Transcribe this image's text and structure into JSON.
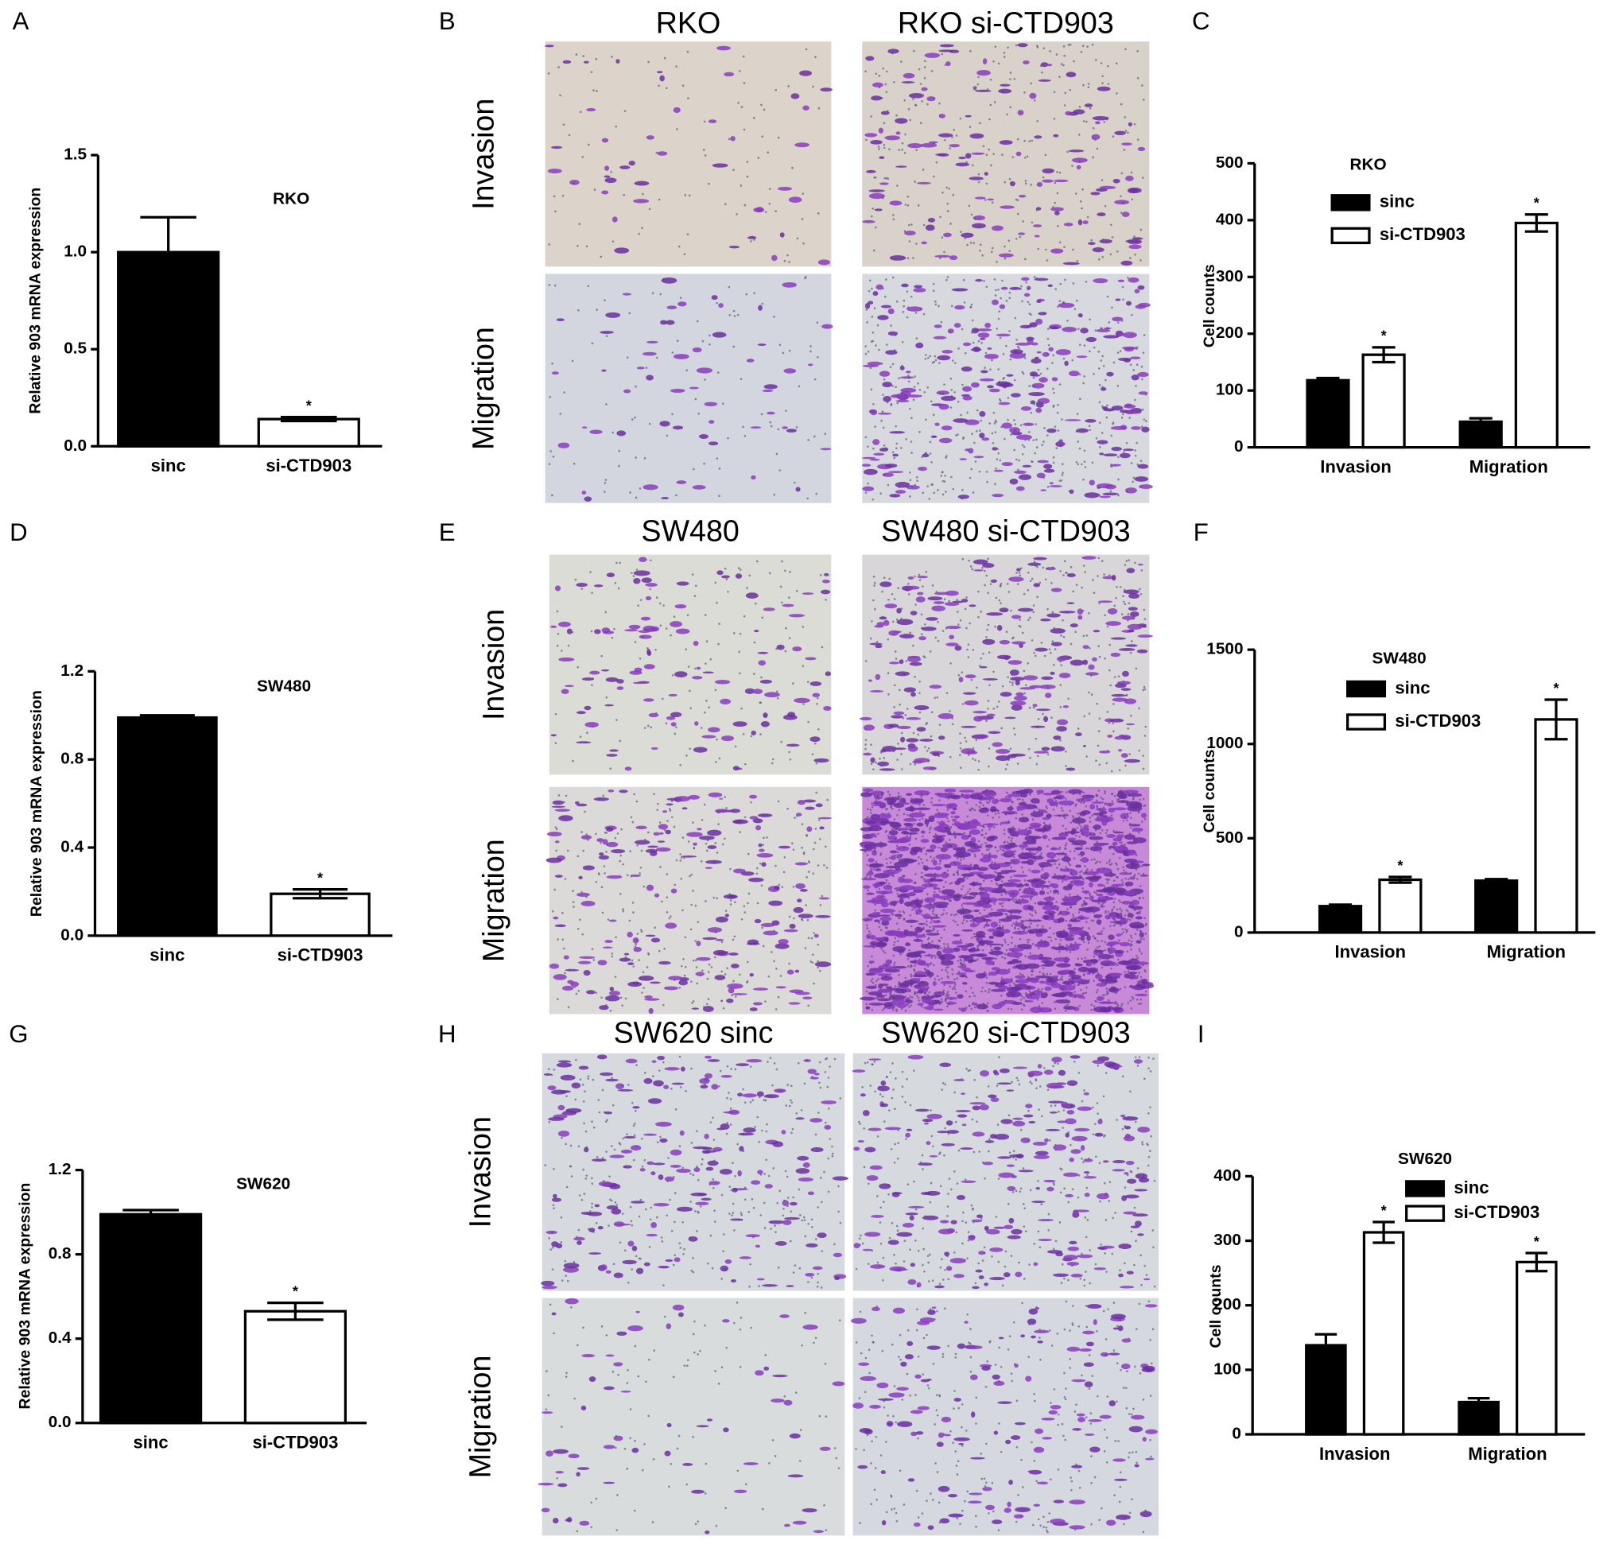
{
  "panel_labels": [
    "A",
    "B",
    "C",
    "D",
    "E",
    "F",
    "G",
    "H",
    "I"
  ],
  "image_panels": [
    {
      "titles": [
        "RKO",
        "RKO si-CTD903"
      ],
      "rows": [
        "Invasion",
        "Migration"
      ]
    },
    {
      "titles": [
        "SW480",
        "SW480 si-CTD903"
      ],
      "rows": [
        "Invasion",
        "Migration"
      ]
    },
    {
      "titles": [
        "SW620 sinc",
        "SW620 si-CTD903"
      ],
      "rows": [
        "Invasion",
        "Migration"
      ]
    }
  ],
  "chart_data": [
    {
      "type": "bar",
      "title": "RKO",
      "y_label": "Relative 903 mRNA expression",
      "categories": [
        "sinc",
        "si-CTD903"
      ],
      "values": [
        1.0,
        0.14
      ],
      "errors": [
        0.18,
        0.01
      ],
      "colors": [
        "#000000",
        "#ffffff"
      ],
      "significance": [
        null,
        "*"
      ],
      "ylim": [
        0,
        1.5
      ],
      "yticks": [
        {
          "value": 0,
          "label": "0.0"
        },
        0.5,
        {
          "value": 1,
          "label": "1.0"
        },
        1.5
      ]
    },
    {
      "type": "grouped_bar",
      "title": "RKO",
      "y_label": "Cell counts",
      "categories": [
        "Invasion",
        "Migration"
      ],
      "series": [
        {
          "name": "sinc",
          "color": "#000000",
          "values": [
            118,
            45
          ],
          "errors": [
            4,
            6
          ],
          "significance": [
            null,
            null
          ]
        },
        {
          "name": "si-CTD903",
          "color": "#ffffff",
          "values": [
            163,
            395
          ],
          "errors": [
            13,
            15
          ],
          "significance": [
            "*",
            "*"
          ]
        }
      ],
      "ylim": [
        0,
        500
      ],
      "yticks": [
        0,
        100,
        200,
        300,
        400,
        500
      ]
    },
    {
      "type": "bar",
      "title": "SW480",
      "y_label": "Relative 903 mRNA expression",
      "categories": [
        "sinc",
        "si-CTD903"
      ],
      "values": [
        0.99,
        0.19
      ],
      "errors": [
        0.01,
        0.02
      ],
      "colors": [
        "#000000",
        "#ffffff"
      ],
      "significance": [
        null,
        "*"
      ],
      "ylim": [
        0,
        1.2
      ],
      "yticks": [
        {
          "value": 0,
          "label": "0.0"
        },
        0.4,
        0.8,
        1.2
      ]
    },
    {
      "type": "grouped_bar",
      "title": "SW480",
      "y_label": "Cell counts",
      "categories": [
        "Invasion",
        "Migration"
      ],
      "series": [
        {
          "name": "sinc",
          "color": "#000000",
          "values": [
            140,
            275
          ],
          "errors": [
            8,
            8
          ],
          "significance": [
            null,
            null
          ]
        },
        {
          "name": "si-CTD903",
          "color": "#ffffff",
          "values": [
            280,
            1130
          ],
          "errors": [
            15,
            105
          ],
          "significance": [
            "*",
            "*"
          ]
        }
      ],
      "ylim": [
        0,
        1500
      ],
      "yticks": [
        0,
        500,
        1000,
        1500
      ]
    },
    {
      "type": "bar",
      "title": "SW620",
      "y_label": "Relative 903 mRNA expression",
      "categories": [
        "sinc",
        "si-CTD903"
      ],
      "values": [
        0.99,
        0.53
      ],
      "errors": [
        0.02,
        0.04
      ],
      "colors": [
        "#000000",
        "#ffffff"
      ],
      "significance": [
        null,
        "*"
      ],
      "ylim": [
        0,
        1.2
      ],
      "yticks": [
        {
          "value": 0,
          "label": "0.0"
        },
        0.4,
        0.8,
        1.2
      ]
    },
    {
      "type": "grouped_bar",
      "title": "SW620",
      "y_label": "Cell counts",
      "categories": [
        "Invasion",
        "Migration"
      ],
      "series": [
        {
          "name": "sinc",
          "color": "#000000",
          "values": [
            138,
            50
          ],
          "errors": [
            17,
            6
          ],
          "significance": [
            null,
            null
          ]
        },
        {
          "name": "si-CTD903",
          "color": "#ffffff",
          "values": [
            313,
            267
          ],
          "errors": [
            16,
            14
          ],
          "significance": [
            "*",
            "*"
          ]
        }
      ],
      "ylim": [
        0,
        400
      ],
      "yticks": [
        0,
        100,
        200,
        300,
        400
      ]
    }
  ]
}
